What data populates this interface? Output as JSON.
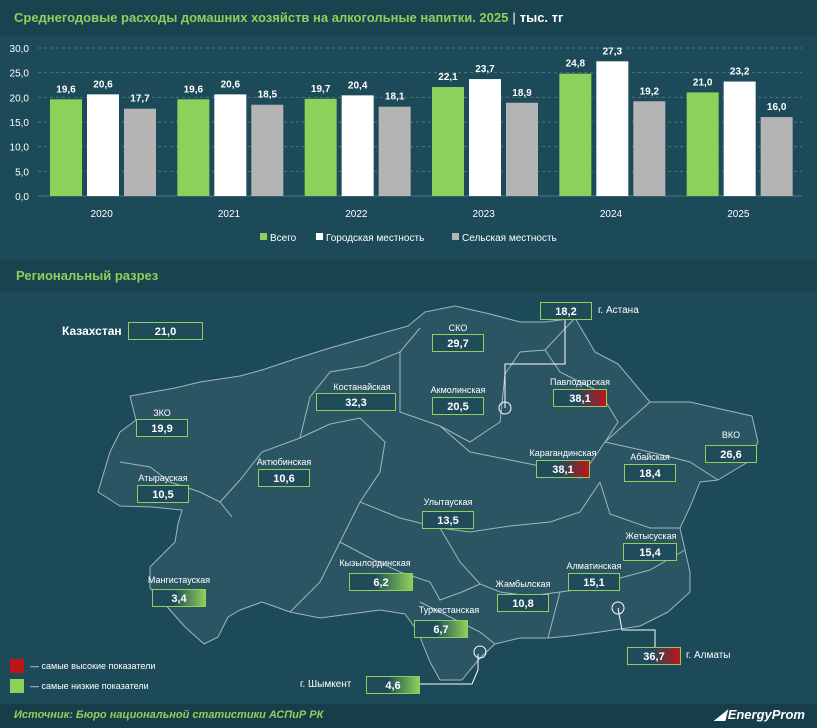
{
  "header": {
    "title": "Среднегодовые расходы домашних хозяйств на алкогольные напитки. 2025",
    "separator": "|",
    "unit": "тыс. тг"
  },
  "colors": {
    "total": "#8dd05a",
    "urban": "#ffffff",
    "rural": "#b4b4b4",
    "high": "#c0141a",
    "low": "#8dd05a",
    "background": "#1d4a58"
  },
  "chart_data": {
    "type": "bar",
    "categories": [
      "2020",
      "2021",
      "2022",
      "2023",
      "2024",
      "2025"
    ],
    "series": [
      {
        "name": "Всего",
        "values": [
          19.6,
          19.6,
          19.7,
          22.1,
          24.8,
          21.0
        ],
        "labels": [
          "19,6",
          "19,6",
          "19,7",
          "22,1",
          "24,8",
          "21,0"
        ]
      },
      {
        "name": "Городская местность",
        "values": [
          20.6,
          20.6,
          20.4,
          23.7,
          27.3,
          23.2
        ],
        "labels": [
          "20,6",
          "20,6",
          "20,4",
          "23,7",
          "27,3",
          "23,2"
        ]
      },
      {
        "name": "Сельская местность",
        "values": [
          17.7,
          18.5,
          18.1,
          18.9,
          19.2,
          16.0
        ],
        "labels": [
          "17,7",
          "18,5",
          "18,1",
          "18,9",
          "19,2",
          "16,0"
        ]
      }
    ],
    "ylim": [
      0,
      30
    ],
    "yticks": [
      "0,0",
      "5,0",
      "10,0",
      "15,0",
      "20,0",
      "25,0",
      "30,0"
    ],
    "grid": true,
    "legend": "bottom"
  },
  "regional": {
    "title": "Региональный разрез",
    "country": {
      "label": "Казахстан",
      "value": "21,0"
    },
    "regions": [
      {
        "id": "sko",
        "name": "СКО",
        "value": "29,7",
        "level": "none"
      },
      {
        "id": "kostanay",
        "name": "Костанайская",
        "value": "32,3",
        "level": "none"
      },
      {
        "id": "akmola",
        "name": "Акмолинская",
        "value": "20,5",
        "level": "none"
      },
      {
        "id": "pavlodar",
        "name": "Павлодарская",
        "value": "38,1",
        "level": "high"
      },
      {
        "id": "zko",
        "name": "ЗКО",
        "value": "19,9",
        "level": "none"
      },
      {
        "id": "aktobe",
        "name": "Актюбинская",
        "value": "10,6",
        "level": "none"
      },
      {
        "id": "karaganda",
        "name": "Карагандинская",
        "value": "38,1",
        "level": "high"
      },
      {
        "id": "abay",
        "name": "Абайская",
        "value": "18,4",
        "level": "none"
      },
      {
        "id": "vko",
        "name": "ВКО",
        "value": "26,6",
        "level": "none"
      },
      {
        "id": "atyrau",
        "name": "Атырауская",
        "value": "10,5",
        "level": "none"
      },
      {
        "id": "ulytau",
        "name": "Улытауская",
        "value": "13,5",
        "level": "none"
      },
      {
        "id": "zhetysu",
        "name": "Жетысуская",
        "value": "15,4",
        "level": "none"
      },
      {
        "id": "kyzylorda",
        "name": "Кызылординская",
        "value": "6,2",
        "level": "low"
      },
      {
        "id": "almaty-reg",
        "name": "Алматинская",
        "value": "15,1",
        "level": "none"
      },
      {
        "id": "mangystau",
        "name": "Мангистауская",
        "value": "3,4",
        "level": "low"
      },
      {
        "id": "zhambyl",
        "name": "Жамбылская",
        "value": "10,8",
        "level": "none"
      },
      {
        "id": "turkestan",
        "name": "Туркестанская",
        "value": "6,7",
        "level": "low"
      }
    ],
    "cities": [
      {
        "id": "astana",
        "name": "г. Астана",
        "value": "18,2",
        "level": "none"
      },
      {
        "id": "almaty",
        "name": "г. Алматы",
        "value": "36,7",
        "level": "high"
      },
      {
        "id": "shymkent",
        "name": "г. Шымкент",
        "value": "4,6",
        "level": "low"
      }
    ],
    "legend": {
      "high": "— самые высокие показатели",
      "low": "— самые низкие показатели"
    }
  },
  "footer": {
    "source": "Источник: Бюро национальной статистики АСПиР РК",
    "logo_mark": "◢",
    "logo": "EnergyProm"
  }
}
